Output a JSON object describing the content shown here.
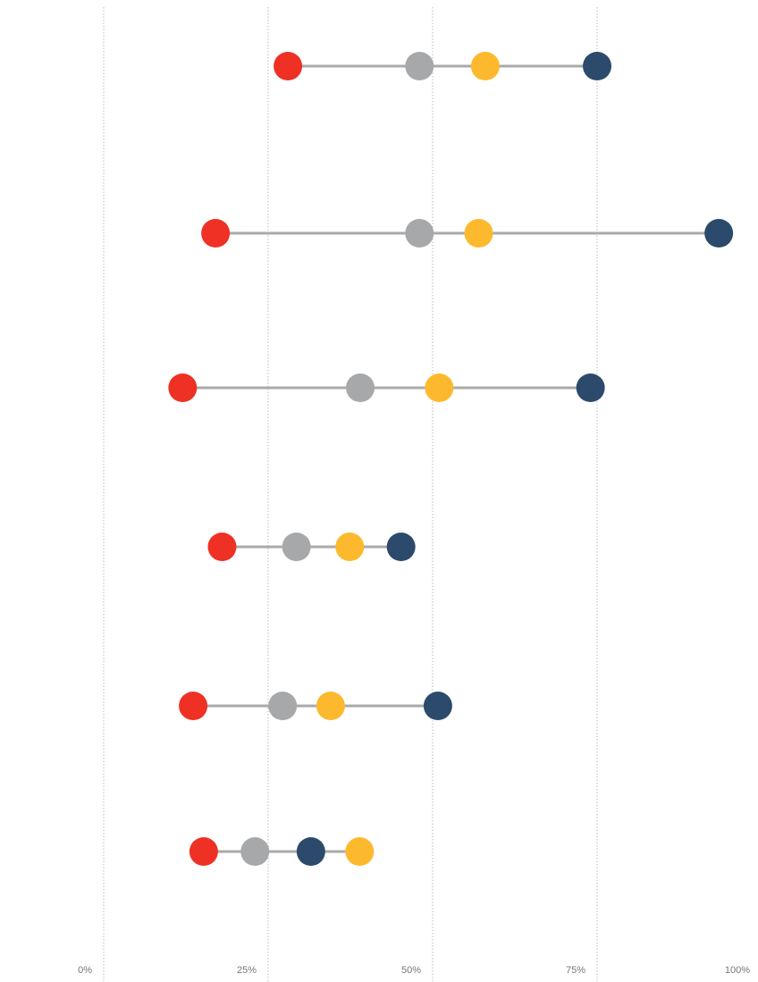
{
  "chart_data": {
    "type": "dot",
    "categories": [
      null,
      null,
      null,
      null,
      null,
      null
    ],
    "series": [
      {
        "color": "#ee3124",
        "values": [
          28,
          17,
          12,
          18,
          13.6,
          15.2
        ]
      },
      {
        "color": "#a7a8aa",
        "values": [
          48,
          48,
          39,
          29.3,
          27.2,
          23
        ]
      },
      {
        "color": "#fdb92e",
        "values": [
          58,
          57,
          51,
          37.4,
          34.5,
          38.9
        ]
      },
      {
        "color": "#2c4a6b",
        "values": [
          75,
          93.5,
          74,
          45.2,
          50.8,
          31.5
        ]
      }
    ],
    "xlim": [
      0,
      100
    ],
    "xticks": [
      {
        "value": 0,
        "label": "0%"
      },
      {
        "value": 25,
        "label": "25%"
      },
      {
        "value": 50,
        "label": "50%"
      },
      {
        "value": 75,
        "label": "75%"
      },
      {
        "value": 100,
        "label": "100%"
      }
    ],
    "grid": true
  }
}
